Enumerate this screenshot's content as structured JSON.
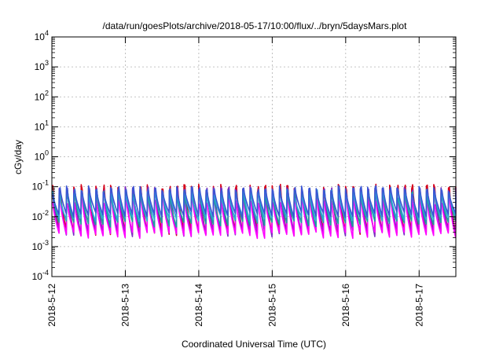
{
  "chart_data": {
    "type": "line",
    "title": "/data/run/goesPlots/archive/2018-05-17/10:00/flux/../bryn/5daysMars.plot",
    "xlabel": "Coordinated Universal Time (UTC)",
    "ylabel": "cGy/day",
    "y_scale": "log",
    "ylim": [
      0.0001,
      10000
    ],
    "xlim": [
      "2018-05-12 00:00",
      "2018-05-17 12:00"
    ],
    "x_ticks": [
      "2018-5-12",
      "2018-5-13",
      "2018-5-14",
      "2018-5-15",
      "2018-5-16",
      "2018-5-17"
    ],
    "y_ticks": [
      {
        "base": "10",
        "exp": "-4"
      },
      {
        "base": "10",
        "exp": "-3"
      },
      {
        "base": "10",
        "exp": "-2"
      },
      {
        "base": "10",
        "exp": "-1"
      },
      {
        "base": "10",
        "exp": "0"
      },
      {
        "base": "10",
        "exp": "1"
      },
      {
        "base": "10",
        "exp": "2"
      },
      {
        "base": "10",
        "exp": "3"
      },
      {
        "base": "10",
        "exp": "4"
      }
    ],
    "grid": true,
    "legend": "none",
    "cycles_per_day": 10,
    "series": [
      {
        "color": "#d6001a",
        "peak": 0.09,
        "trough": 0.003
      },
      {
        "color": "#7a2cc2",
        "peak": 0.075,
        "trough": 0.0028
      },
      {
        "color": "#ff00ff",
        "peak": 0.035,
        "trough": 0.0025
      },
      {
        "color": "#1aa0a0",
        "peak": 0.055,
        "trough": 0.006
      },
      {
        "color": "#2aa7d6",
        "peak": 0.06,
        "trough": 0.009
      },
      {
        "color": "#3a55d4",
        "peak": 0.08,
        "trough": 0.012
      }
    ]
  }
}
